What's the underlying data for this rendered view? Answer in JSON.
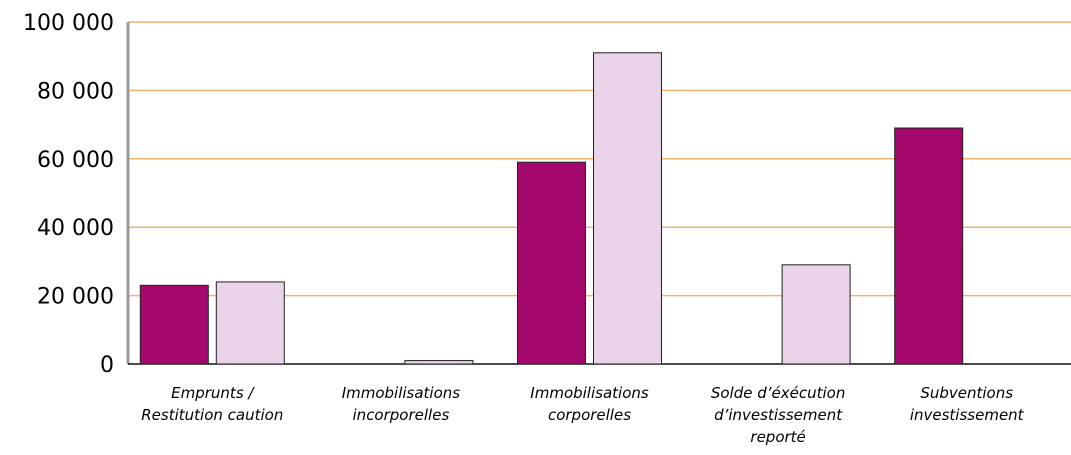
{
  "chart_data": {
    "type": "bar",
    "title": "",
    "xlabel": "",
    "ylabel": "",
    "ylim": [
      0,
      100000
    ],
    "yticks": [
      0,
      20000,
      40000,
      60000,
      80000,
      100000
    ],
    "ytick_labels": [
      "0",
      "20 000",
      "40 000",
      "60 000",
      "80 000",
      "100 000"
    ],
    "grid": "horizontal",
    "gridline_color": "#f5b46b",
    "categories": [
      "Emprunts / Restitution caution",
      "Immobilisations incorporelles",
      "Immobilisations corporelles",
      "Solde d’éxécution d’investissement reporté",
      "Subventions investissement"
    ],
    "category_lines": [
      [
        "Emprunts /",
        "Restitution caution"
      ],
      [
        "Immobilisations",
        "incorporelles"
      ],
      [
        "Immobilisations",
        "corporelles"
      ],
      [
        "Solde d’éxécution",
        "d’investissement",
        "reporté"
      ],
      [
        "Subventions",
        "investissement"
      ]
    ],
    "series": [
      {
        "color": "#a5096d",
        "values": [
          23000,
          0,
          59000,
          0,
          69000
        ]
      },
      {
        "color": "#ead3e8",
        "values": [
          24000,
          1000,
          91000,
          29000,
          0
        ]
      }
    ]
  }
}
